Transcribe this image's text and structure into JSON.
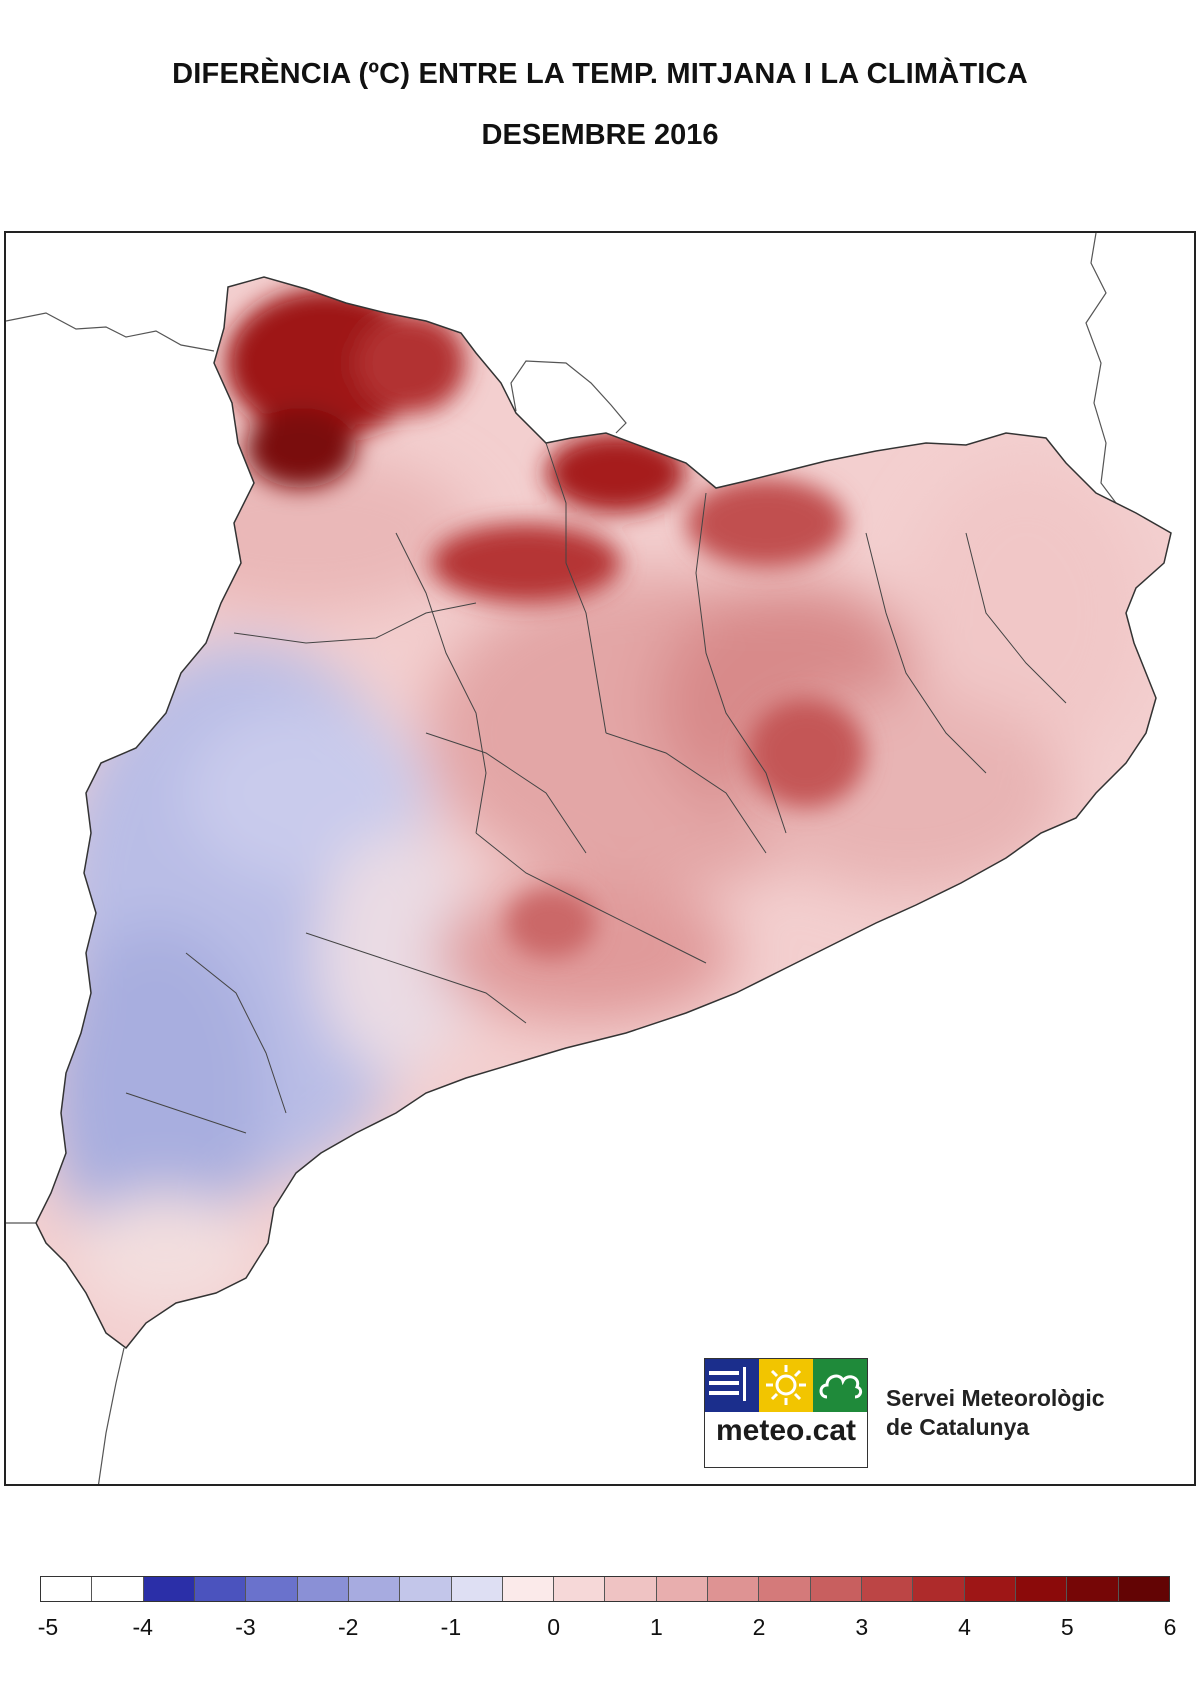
{
  "title": {
    "line1": "DIFERÈNCIA (ºC) ENTRE LA TEMP. MITJANA I LA CLIMÀTICA",
    "line2": "DESEMBRE 2016"
  },
  "logo": {
    "text": "meteo.cat",
    "tiles": [
      {
        "color": "#1b2e8c",
        "icon": "bars-icon"
      },
      {
        "color": "#f2c500",
        "icon": "sun-icon"
      },
      {
        "color": "#1f8a3a",
        "icon": "cloud-icon"
      }
    ]
  },
  "agency": {
    "line1": "Servei Meteorològic",
    "line2": "de Catalunya"
  },
  "legend": {
    "colors": [
      "#ffffff",
      "#ffffff",
      "#2b2fa8",
      "#4b53be",
      "#6a72cc",
      "#8a90d6",
      "#a7abe0",
      "#c3c6ea",
      "#dedff3",
      "#fbeaea",
      "#f6d8d8",
      "#efc3c3",
      "#e8aeae",
      "#de9393",
      "#d47a7a",
      "#c85f5f",
      "#bc4545",
      "#ae2b2b",
      "#9e1616",
      "#8b0a0a",
      "#760606",
      "#630404"
    ],
    "ticks": [
      {
        "label": "-5",
        "index": 0
      },
      {
        "label": "-4",
        "index": 2
      },
      {
        "label": "-3",
        "index": 4
      },
      {
        "label": "-2",
        "index": 6
      },
      {
        "label": "-1",
        "index": 8
      },
      {
        "label": "0",
        "index": 10
      },
      {
        "label": "1",
        "index": 12
      },
      {
        "label": "2",
        "index": 14
      },
      {
        "label": "3",
        "index": 16
      },
      {
        "label": "4",
        "index": 18
      },
      {
        "label": "5",
        "index": 20
      },
      {
        "label": "6",
        "index": 22
      }
    ]
  }
}
